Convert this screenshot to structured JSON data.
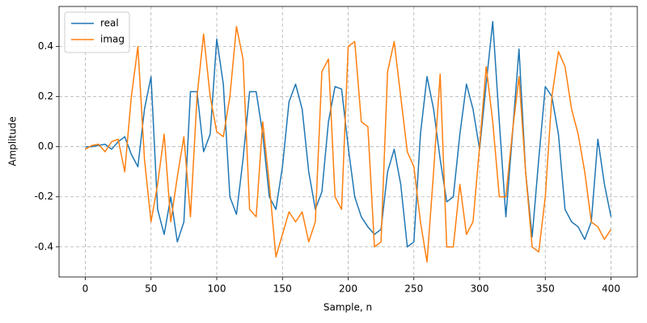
{
  "chart_data": {
    "type": "line",
    "xlabel": "Sample, n",
    "ylabel": "Amplitude",
    "x": [
      0,
      5,
      10,
      15,
      20,
      25,
      30,
      35,
      40,
      45,
      50,
      55,
      60,
      65,
      70,
      75,
      80,
      85,
      90,
      95,
      100,
      105,
      110,
      115,
      120,
      125,
      130,
      135,
      140,
      145,
      150,
      155,
      160,
      165,
      170,
      175,
      180,
      185,
      190,
      195,
      200,
      205,
      210,
      215,
      220,
      225,
      230,
      235,
      240,
      245,
      250,
      255,
      260,
      265,
      270,
      275,
      280,
      285,
      290,
      295,
      300,
      305,
      310,
      315,
      320,
      325,
      330,
      335,
      340,
      345,
      350,
      355,
      360,
      365,
      370,
      375,
      380,
      385,
      390,
      395,
      400
    ],
    "series": [
      {
        "name": "real",
        "color": "#1f77b4",
        "values": [
          0.0,
          0.0,
          0.005,
          0.01,
          -0.01,
          0.02,
          0.04,
          -0.03,
          -0.08,
          0.15,
          0.28,
          -0.25,
          -0.35,
          -0.2,
          -0.38,
          -0.3,
          0.22,
          0.22,
          -0.02,
          0.05,
          0.43,
          0.25,
          -0.2,
          -0.27,
          -0.05,
          0.22,
          0.22,
          0.05,
          -0.2,
          -0.25,
          -0.08,
          0.18,
          0.25,
          0.15,
          -0.1,
          -0.25,
          -0.18,
          0.1,
          0.24,
          0.23,
          0.0,
          -0.2,
          -0.28,
          -0.32,
          -0.35,
          -0.33,
          -0.1,
          -0.01,
          -0.15,
          -0.4,
          -0.38,
          0.05,
          0.28,
          0.15,
          -0.05,
          -0.22,
          -0.2,
          0.05,
          0.25,
          0.15,
          -0.01,
          0.25,
          0.5,
          0.1,
          -0.28,
          0.05,
          0.39,
          -0.1,
          -0.36,
          -0.05,
          0.24,
          0.2,
          0.05,
          -0.25,
          -0.3,
          -0.32,
          -0.37,
          -0.3,
          0.03,
          -0.15,
          -0.28
        ]
      },
      {
        "name": "imag",
        "color": "#ff7f0e",
        "values": [
          -0.01,
          0.005,
          0.01,
          -0.02,
          0.02,
          0.03,
          -0.1,
          0.2,
          0.4,
          -0.05,
          -0.3,
          -0.15,
          0.05,
          -0.3,
          -0.12,
          0.04,
          -0.28,
          0.2,
          0.45,
          0.2,
          0.06,
          0.04,
          0.2,
          0.48,
          0.35,
          -0.25,
          -0.28,
          0.1,
          -0.15,
          -0.44,
          -0.35,
          -0.26,
          -0.3,
          -0.26,
          -0.38,
          -0.3,
          0.3,
          0.35,
          -0.2,
          -0.25,
          0.4,
          0.42,
          0.1,
          0.08,
          -0.4,
          -0.38,
          0.3,
          0.42,
          0.2,
          -0.02,
          -0.08,
          -0.3,
          -0.46,
          -0.1,
          0.29,
          -0.4,
          -0.4,
          -0.15,
          -0.35,
          -0.3,
          0.0,
          0.32,
          0.1,
          -0.2,
          -0.2,
          0.06,
          0.28,
          -0.1,
          -0.4,
          -0.42,
          -0.2,
          0.2,
          0.38,
          0.32,
          0.15,
          0.05,
          -0.1,
          -0.3,
          -0.32,
          -0.37,
          -0.33
        ]
      }
    ],
    "xlim": [
      -20,
      420
    ],
    "ylim": [
      -0.52,
      0.56
    ],
    "xticks": [
      0,
      50,
      100,
      150,
      200,
      250,
      300,
      350,
      400
    ],
    "yticks": [
      -0.4,
      -0.2,
      {
        "value": 0,
        "label": "0.0"
      },
      0.2,
      0.4
    ],
    "grid": true,
    "legend": "upper left"
  }
}
